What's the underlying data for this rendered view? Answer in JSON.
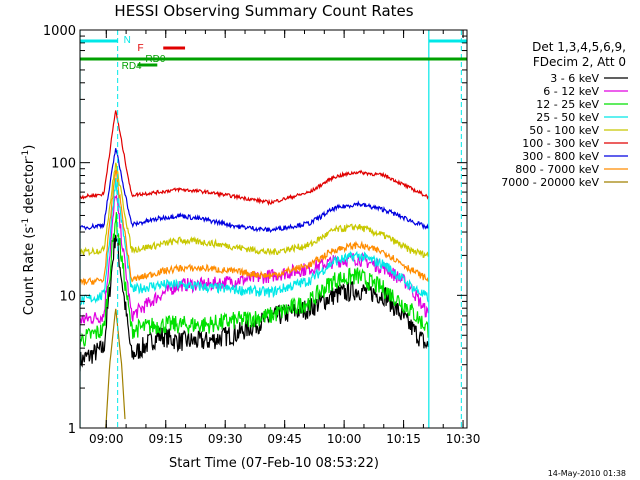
{
  "chart_data": {
    "type": "line",
    "title": "HESSI Observing Summary Count Rates",
    "xlabel": "Start Time (07-Feb-10 08:53:22)",
    "ylabel_main": "Count Rate (s",
    "ylabel_sup1": "-1",
    "ylabel_mid": " detector",
    "ylabel_sup2": "-1",
    "ylabel_end": ")",
    "y_scale": "log",
    "ylim": [
      1,
      1000
    ],
    "xlim": [
      "08:53:22",
      "10:31:00"
    ],
    "x_ticks": [
      "09:00",
      "09:15",
      "09:30",
      "09:45",
      "10:00",
      "10:15",
      "10:30"
    ],
    "y_ticks": [
      "1",
      "10",
      "100",
      "1000"
    ],
    "legend_header": [
      "Det 1,3,4,5,6,9,",
      "FDecim 2, Att 0"
    ],
    "legend_position": "right",
    "series": [
      {
        "name": "3 - 6 keV",
        "color": "#000000",
        "points": [
          [
            0,
            3.2
          ],
          [
            6,
            4.0
          ],
          [
            9,
            30
          ],
          [
            13,
            3.5
          ],
          [
            20,
            5
          ],
          [
            25,
            4.5
          ],
          [
            32,
            4.5
          ],
          [
            40,
            5.2
          ],
          [
            48,
            6.8
          ],
          [
            58,
            8
          ],
          [
            64,
            10
          ],
          [
            70,
            11
          ],
          [
            77,
            10
          ],
          [
            83,
            6
          ],
          [
            88,
            4
          ]
        ]
      },
      {
        "name": "6 - 12 keV",
        "color": "#e000e0",
        "points": [
          [
            0,
            6.5
          ],
          [
            6,
            7
          ],
          [
            9,
            60
          ],
          [
            13,
            7
          ],
          [
            20,
            10
          ],
          [
            25,
            12
          ],
          [
            32,
            12
          ],
          [
            40,
            13
          ],
          [
            48,
            14
          ],
          [
            58,
            16
          ],
          [
            64,
            18
          ],
          [
            70,
            19
          ],
          [
            77,
            16
          ],
          [
            83,
            12
          ],
          [
            88,
            7
          ]
        ]
      },
      {
        "name": "12 - 25 keV",
        "color": "#00e000",
        "points": [
          [
            0,
            4.6
          ],
          [
            6,
            5.5
          ],
          [
            9,
            40
          ],
          [
            13,
            5.5
          ],
          [
            20,
            6
          ],
          [
            25,
            6
          ],
          [
            32,
            6
          ],
          [
            40,
            6.5
          ],
          [
            48,
            7
          ],
          [
            58,
            9
          ],
          [
            64,
            13
          ],
          [
            70,
            14
          ],
          [
            77,
            11
          ],
          [
            83,
            8
          ],
          [
            88,
            5.5
          ]
        ]
      },
      {
        "name": "25 - 50 keV",
        "color": "#00e8e8",
        "points": [
          [
            0,
            9
          ],
          [
            6,
            10
          ],
          [
            9,
            75
          ],
          [
            13,
            11
          ],
          [
            20,
            12
          ],
          [
            25,
            12
          ],
          [
            32,
            11.5
          ],
          [
            40,
            11
          ],
          [
            48,
            10.5
          ],
          [
            58,
            13
          ],
          [
            64,
            18
          ],
          [
            70,
            20
          ],
          [
            77,
            17
          ],
          [
            83,
            12
          ],
          [
            88,
            9.5
          ]
        ]
      },
      {
        "name": "50 - 100 keV",
        "color": "#c8c800",
        "points": [
          [
            0,
            21
          ],
          [
            6,
            22
          ],
          [
            9,
            100
          ],
          [
            13,
            22
          ],
          [
            20,
            24
          ],
          [
            25,
            26
          ],
          [
            32,
            25
          ],
          [
            40,
            23
          ],
          [
            48,
            21
          ],
          [
            58,
            24
          ],
          [
            64,
            31
          ],
          [
            70,
            33
          ],
          [
            77,
            28
          ],
          [
            83,
            22
          ],
          [
            88,
            20
          ]
        ]
      },
      {
        "name": "100 - 300 keV",
        "color": "#e00000",
        "points": [
          [
            0,
            55
          ],
          [
            6,
            58
          ],
          [
            9,
            250
          ],
          [
            13,
            57
          ],
          [
            20,
            60
          ],
          [
            25,
            63
          ],
          [
            32,
            60
          ],
          [
            40,
            55
          ],
          [
            48,
            50
          ],
          [
            58,
            60
          ],
          [
            64,
            78
          ],
          [
            70,
            85
          ],
          [
            77,
            80
          ],
          [
            83,
            65
          ],
          [
            88,
            55
          ]
        ]
      },
      {
        "name": "300 - 800 keV",
        "color": "#0000e0",
        "points": [
          [
            0,
            32
          ],
          [
            6,
            34
          ],
          [
            9,
            130
          ],
          [
            13,
            34
          ],
          [
            20,
            38
          ],
          [
            25,
            40
          ],
          [
            32,
            37
          ],
          [
            40,
            33
          ],
          [
            48,
            31
          ],
          [
            58,
            35
          ],
          [
            64,
            45
          ],
          [
            70,
            49
          ],
          [
            77,
            44
          ],
          [
            83,
            37
          ],
          [
            88,
            32
          ]
        ]
      },
      {
        "name": "800 - 7000 keV",
        "color": "#ff8c00",
        "points": [
          [
            0,
            12.5
          ],
          [
            6,
            13
          ],
          [
            9,
            90
          ],
          [
            13,
            13
          ],
          [
            20,
            15
          ],
          [
            25,
            16
          ],
          [
            32,
            16
          ],
          [
            40,
            15
          ],
          [
            48,
            14
          ],
          [
            58,
            17
          ],
          [
            64,
            22
          ],
          [
            70,
            24
          ],
          [
            77,
            21
          ],
          [
            83,
            16
          ],
          [
            88,
            13
          ]
        ]
      },
      {
        "name": "7000 - 20000 keV",
        "color": "#a08000",
        "points": [
          [
            6.5,
            1
          ],
          [
            7.5,
            3
          ],
          [
            9,
            8
          ],
          [
            10.5,
            3
          ],
          [
            11.5,
            1
          ]
        ]
      }
    ],
    "annotations": [
      {
        "label": "N",
        "color": "#00e8e8"
      },
      {
        "label": "F",
        "color": "#e00000"
      },
      {
        "label": "RD0",
        "color": "#00a000"
      },
      {
        "label": "RD4",
        "color": "#00a000"
      }
    ],
    "footer_timestamp": "14-May-2010 01:38"
  }
}
